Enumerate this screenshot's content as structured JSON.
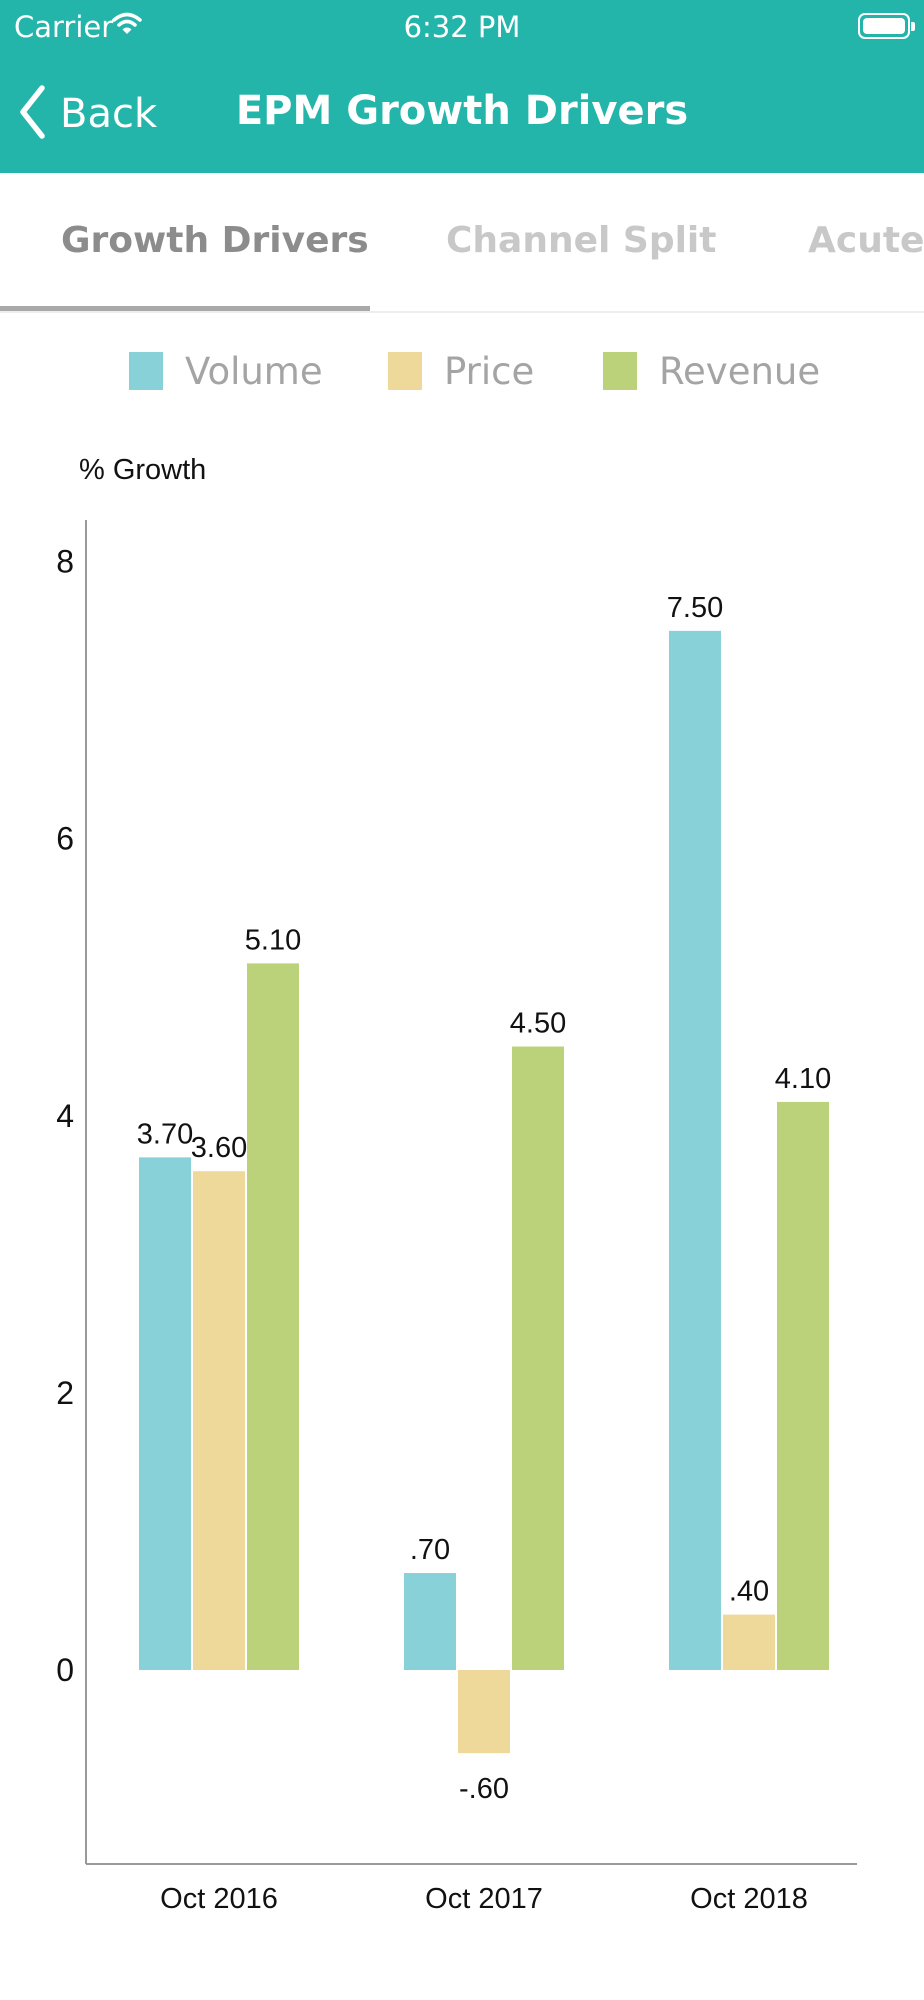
{
  "status_bar": {
    "carrier": "Carrier",
    "time": "6:32 PM"
  },
  "nav": {
    "back_label": "Back",
    "title": "EPM Growth Drivers"
  },
  "tabs": [
    {
      "label": "Growth Drivers",
      "active": true
    },
    {
      "label": "Channel Split",
      "active": false
    },
    {
      "label": "Acute-C",
      "active": false
    }
  ],
  "colors": {
    "header": "#23b5aa",
    "volume": "#89d1d9",
    "price": "#eed89a",
    "revenue": "#bcd27a"
  },
  "chart_data": {
    "type": "bar",
    "ylabel": "% Growth",
    "xlabel": "",
    "categories": [
      "Oct 2016",
      "Oct 2017",
      "Oct 2018"
    ],
    "series": [
      {
        "name": "Volume",
        "values": [
          3.7,
          0.7,
          7.5
        ],
        "labels": [
          "3.70",
          ".70",
          "7.50"
        ]
      },
      {
        "name": "Price",
        "values": [
          3.6,
          -0.6,
          0.4
        ],
        "labels": [
          "3.60",
          "-.60",
          ".40"
        ]
      },
      {
        "name": "Revenue",
        "values": [
          5.1,
          4.5,
          4.1
        ],
        "labels": [
          "5.10",
          "4.50",
          "4.10"
        ]
      }
    ],
    "yticks": [
      0,
      2,
      4,
      6,
      8
    ],
    "ylim": [
      -1.4,
      8.3
    ],
    "legend_position": "top",
    "grid": false
  }
}
